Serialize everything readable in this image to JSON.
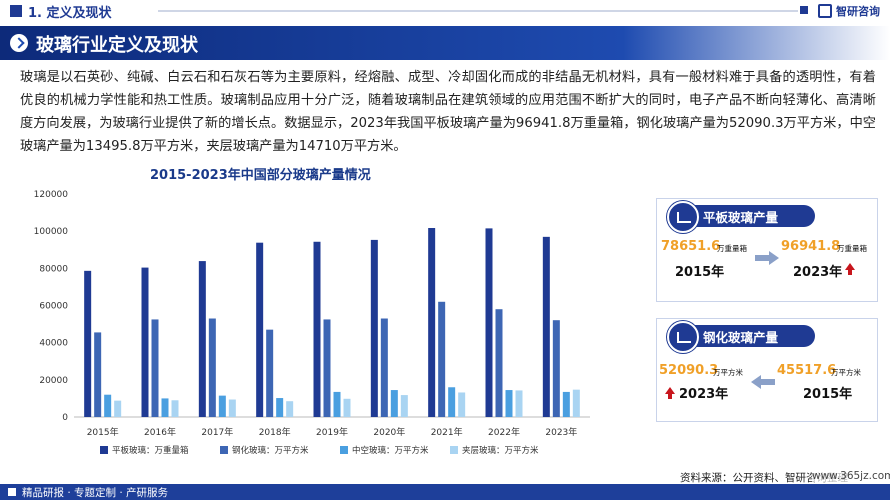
{
  "header": {
    "section_title": "1. 定义及现状",
    "brand": "智研咨询"
  },
  "banner": {
    "title": "玻璃行业定义及现状"
  },
  "intro": {
    "text": "玻璃是以石英砂、纯碱、白云石和石灰石等为主要原料，经熔融、成型、冷却固化而成的非结晶无机材料，具有一般材料难于具备的透明性，有着优良的机械力学性能和热工性质。玻璃制品应用十分广泛，随着玻璃制品在建筑领域的应用范围不断扩大的同时，电子产品不断向轻薄化、高清晰度方向发展，为玻璃行业提供了新的增长点。数据显示，2023年我国平板玻璃产量为96941.8万重量箱，钢化玻璃产量为52090.3万平方米，中空玻璃产量为13495.8万平方米，夹层玻璃产量为14710万平方米。"
  },
  "chart_data": {
    "type": "bar",
    "title": "2015-2023年中国部分玻璃产量情况",
    "categories": [
      "2015年",
      "2016年",
      "2017年",
      "2018年",
      "2019年",
      "2020年",
      "2021年",
      "2022年",
      "2023年"
    ],
    "ylim": [
      0,
      120000
    ],
    "yticks": [
      0,
      20000,
      40000,
      60000,
      80000,
      100000,
      120000
    ],
    "legend_position": "bottom",
    "series": [
      {
        "name": "平板玻璃：万重量箱",
        "color": "#1f3a93",
        "values": [
          78651.6,
          80400,
          83900,
          93800,
          94300,
          95300,
          101700,
          101500,
          96941.8
        ]
      },
      {
        "name": "钢化玻璃：万平方米",
        "color": "#3d66b4",
        "values": [
          45517.6,
          52500,
          53000,
          47000,
          52500,
          53000,
          62000,
          58000,
          52090.3
        ]
      },
      {
        "name": "中空玻璃：万平方米",
        "color": "#4a9fe0",
        "values": [
          12000,
          10000,
          11500,
          10200,
          13500,
          14500,
          16000,
          14500,
          13495.8
        ]
      },
      {
        "name": "夹层玻璃：万平方米",
        "color": "#a9d4f2",
        "values": [
          8800,
          9000,
          9400,
          8500,
          9800,
          11800,
          13200,
          14300,
          14710
        ]
      }
    ]
  },
  "cards": {
    "flat": {
      "title": "平板玻璃产量",
      "left_value": "78651.6",
      "left_unit": "万重量箱",
      "left_year": "2015年",
      "right_value": "96941.8",
      "right_unit": "万重量箱",
      "right_year": "2023年"
    },
    "tempered": {
      "title": "钢化玻璃产量",
      "left_value": "52090.3",
      "left_unit": "万平方米",
      "left_year": "2023年",
      "right_value": "45517.6",
      "right_unit": "万平方米",
      "right_year": "2015年"
    }
  },
  "footer": {
    "source": "资料来源：公开资料、智研咨询整理",
    "watermark": "www.365jz.com",
    "slogan": "精品研报 · 专题定制 · 产研服务"
  },
  "colors": {
    "primary": "#1f3a93",
    "accent_orange": "#f0a028",
    "up_red": "#c8161d"
  }
}
